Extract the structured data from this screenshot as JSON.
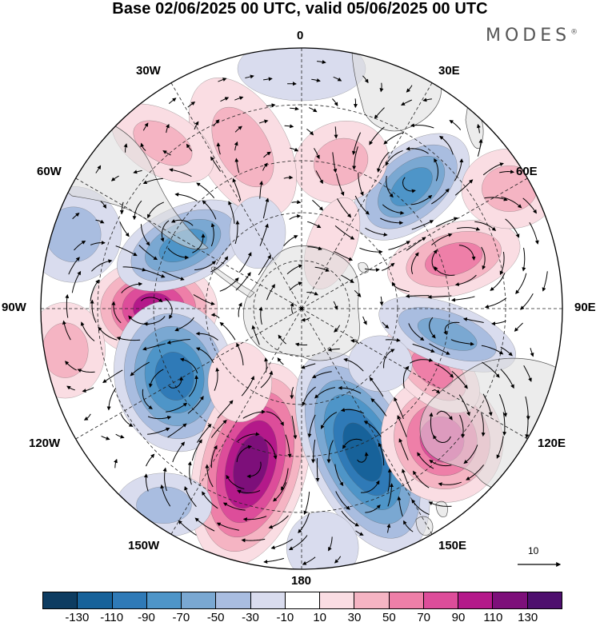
{
  "header": {
    "title": "Base 02/06/2025 00 UTC, valid 05/06/2025 00 UTC",
    "brand": "MODES",
    "brand_mark": "®"
  },
  "map": {
    "projection": "south polar stereographic",
    "longitude_labels": {
      "lon_0": "0",
      "lon_30e": "30E",
      "lon_60e": "60E",
      "lon_90e": "90E",
      "lon_120e": "120E",
      "lon_150e": "150E",
      "lon_180": "180",
      "lon_150w": "150W",
      "lon_120w": "120W",
      "lon_90w": "90W",
      "lon_60w": "60W",
      "lon_30w": "30W"
    },
    "pattern": "alternating positive/negative anomaly wave train around Antarctica",
    "positive_centers": [
      "90W",
      "165W",
      "75E",
      "130E"
    ],
    "negative_centers": [
      "70W",
      "115W",
      "160E",
      "45E",
      "100E"
    ]
  },
  "vector_reference": {
    "value": "10"
  },
  "colorbar": {
    "ticks": [
      "-130",
      "-110",
      "-90",
      "-70",
      "-50",
      "-30",
      "-10",
      "10",
      "30",
      "50",
      "70",
      "90",
      "110",
      "130"
    ],
    "colors": [
      "#0d3c61",
      "#17629a",
      "#2f7ab7",
      "#4e95c8",
      "#7aa8d2",
      "#a9bde0",
      "#d9dcee",
      "#ffffff",
      "#fadde3",
      "#f5b4c3",
      "#ee7fa8",
      "#dd4d9a",
      "#b4198a",
      "#7d0f7a",
      "#4e0f6e"
    ]
  }
}
